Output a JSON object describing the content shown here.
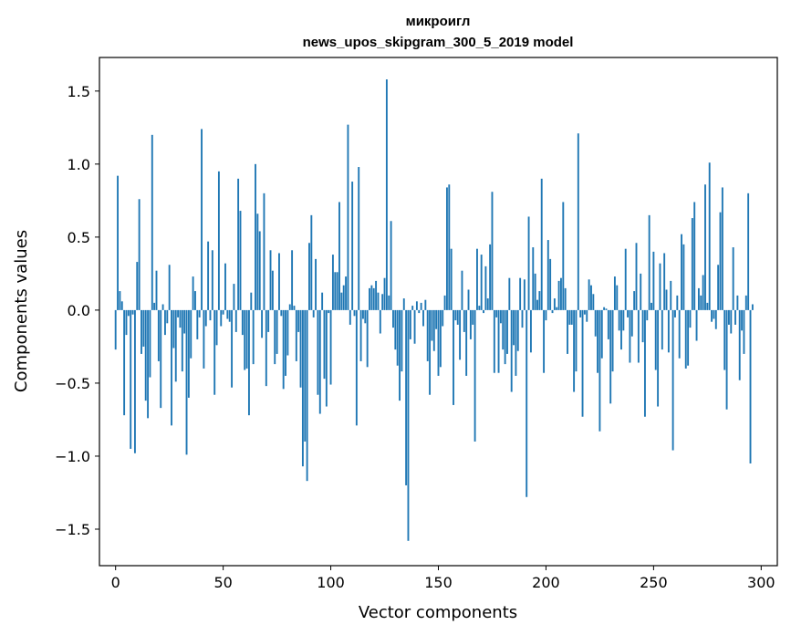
{
  "chart_data": {
    "type": "bar",
    "title": "микроигл",
    "subtitle": "news_upos_skipgram_300_5_2019 model",
    "xlabel": "Vector components",
    "ylabel": "Components values",
    "xlim": [
      -7.5,
      307.5
    ],
    "ylim": [
      -1.75,
      1.73
    ],
    "xticks": [
      0,
      50,
      100,
      150,
      200,
      250,
      300
    ],
    "yticks": [
      -1.5,
      -1.0,
      -0.5,
      0.0,
      0.5,
      1.0,
      1.5
    ],
    "grid": false,
    "bar_color": "#1f77b4",
    "values": [
      -0.27,
      0.92,
      0.13,
      0.06,
      -0.72,
      -0.17,
      -0.04,
      -0.95,
      -0.03,
      -0.98,
      0.33,
      0.76,
      -0.3,
      -0.25,
      -0.62,
      -0.74,
      -0.46,
      1.2,
      0.05,
      0.27,
      -0.35,
      -0.67,
      0.04,
      -0.17,
      -0.09,
      0.31,
      -0.79,
      -0.26,
      -0.49,
      -0.05,
      -0.12,
      -0.42,
      -0.16,
      -0.99,
      -0.6,
      -0.33,
      0.23,
      0.13,
      -0.2,
      -0.05,
      1.24,
      -0.4,
      -0.11,
      0.47,
      -0.07,
      0.41,
      -0.58,
      -0.24,
      0.95,
      -0.11,
      -0.03,
      0.32,
      -0.06,
      -0.08,
      -0.53,
      0.18,
      -0.15,
      0.9,
      0.68,
      -0.17,
      -0.41,
      -0.4,
      -0.72,
      0.12,
      -0.37,
      1.0,
      0.66,
      0.54,
      -0.19,
      0.8,
      -0.52,
      -0.15,
      0.41,
      0.27,
      -0.37,
      -0.3,
      0.39,
      -0.04,
      -0.54,
      -0.45,
      -0.31,
      0.04,
      0.41,
      0.03,
      -0.35,
      -0.15,
      -0.53,
      -1.07,
      -0.9,
      -1.17,
      0.46,
      0.65,
      -0.05,
      0.35,
      -0.58,
      -0.71,
      0.12,
      -0.47,
      -0.66,
      -0.02,
      -0.51,
      0.38,
      0.26,
      0.26,
      0.74,
      0.12,
      0.17,
      0.23,
      1.27,
      -0.1,
      0.88,
      -0.04,
      -0.79,
      0.98,
      -0.35,
      -0.06,
      -0.09,
      -0.39,
      0.15,
      0.17,
      0.15,
      0.2,
      0.12,
      -0.16,
      0.11,
      0.22,
      1.58,
      0.1,
      0.61,
      -0.12,
      -0.27,
      -0.38,
      -0.62,
      -0.42,
      0.08,
      -1.2,
      -1.58,
      -0.2,
      0.03,
      -0.23,
      0.06,
      -0.02,
      0.05,
      -0.11,
      0.07,
      -0.35,
      -0.58,
      -0.21,
      -0.28,
      -0.13,
      -0.45,
      -0.39,
      -0.11,
      0.1,
      0.84,
      0.86,
      0.42,
      -0.65,
      -0.07,
      -0.1,
      -0.34,
      0.27,
      -0.15,
      -0.45,
      0.14,
      -0.2,
      -0.1,
      -0.9,
      0.42,
      0.03,
      0.38,
      -0.02,
      0.3,
      0.08,
      0.45,
      0.81,
      -0.43,
      -0.05,
      -0.43,
      -0.09,
      -0.27,
      -0.37,
      -0.3,
      0.22,
      -0.56,
      -0.24,
      -0.45,
      -0.28,
      0.22,
      -0.12,
      0.21,
      -1.28,
      0.64,
      -0.29,
      0.43,
      0.25,
      0.07,
      0.13,
      0.9,
      -0.43,
      -0.07,
      0.48,
      0.35,
      -0.02,
      0.08,
      0.02,
      0.2,
      0.22,
      0.74,
      0.15,
      -0.3,
      -0.1,
      -0.1,
      -0.56,
      -0.42,
      1.21,
      -0.05,
      -0.73,
      -0.03,
      -0.08,
      0.21,
      0.17,
      0.11,
      -0.18,
      -0.43,
      -0.83,
      -0.33,
      0.02,
      0.01,
      -0.2,
      -0.64,
      -0.42,
      0.23,
      0.17,
      -0.14,
      -0.27,
      -0.14,
      0.42,
      -0.05,
      -0.36,
      -0.18,
      0.13,
      0.46,
      -0.36,
      0.25,
      -0.22,
      -0.73,
      -0.07,
      0.65,
      0.05,
      0.4,
      -0.41,
      -0.66,
      0.32,
      -0.27,
      0.39,
      0.14,
      -0.29,
      0.2,
      -0.96,
      -0.05,
      0.1,
      -0.33,
      0.52,
      0.45,
      -0.4,
      -0.38,
      -0.12,
      0.63,
      0.74,
      -0.21,
      0.15,
      0.1,
      0.24,
      0.86,
      0.05,
      1.01,
      -0.08,
      -0.06,
      -0.13,
      0.31,
      0.67,
      0.84,
      -0.41,
      -0.68,
      -0.1,
      -0.16,
      0.43,
      -0.1,
      0.1,
      -0.48,
      -0.14,
      -0.3,
      0.1,
      0.8,
      -1.05,
      0.04
    ]
  }
}
